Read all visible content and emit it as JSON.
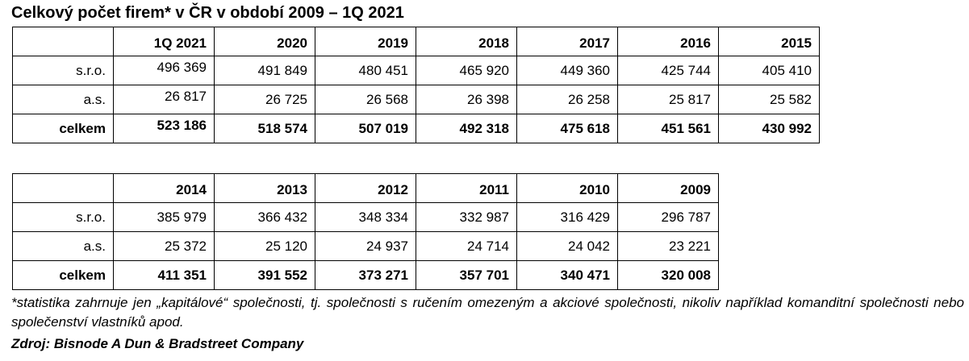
{
  "title": "Celkový počet firem* v ČR v období 2009 – 1Q 2021",
  "table_top": {
    "columns": [
      "1Q 2021",
      "2020",
      "2019",
      "2018",
      "2017",
      "2016",
      "2015"
    ],
    "rows": [
      {
        "label": "s.r.o.",
        "values": [
          "496 369",
          "491 849",
          "480 451",
          "465 920",
          "449 360",
          "425 744",
          "405 410"
        ]
      },
      {
        "label": "a.s.",
        "values": [
          "26 817",
          "26 725",
          "26 568",
          "26 398",
          "26 258",
          "25 817",
          "25 582"
        ]
      },
      {
        "label": "celkem",
        "values": [
          "523 186",
          "518 574",
          "507 019",
          "492 318",
          "475 618",
          "451 561",
          "430 992"
        ]
      }
    ]
  },
  "table_bottom": {
    "columns": [
      "2014",
      "2013",
      "2012",
      "2011",
      "2010",
      "2009"
    ],
    "rows": [
      {
        "label": "s.r.o.",
        "values": [
          "385 979",
          "366 432",
          "348 334",
          "332 987",
          "316 429",
          "296 787"
        ]
      },
      {
        "label": "a.s.",
        "values": [
          "25 372",
          "25 120",
          "24 937",
          "24 714",
          "24 042",
          "23 221"
        ]
      },
      {
        "label": "celkem",
        "values": [
          "411 351",
          "391 552",
          "373 271",
          "357 701",
          "340 471",
          "320 008"
        ]
      }
    ]
  },
  "footnote": "*statistika zahrnuje jen „kapitálové“ společnosti, tj. společnosti s ručením omezeným a akciové společnosti, nikoliv například komanditní společnosti nebo společenství vlastníků apod.",
  "source": "Zdroj: Bisnode A Dun & Bradstreet Company"
}
